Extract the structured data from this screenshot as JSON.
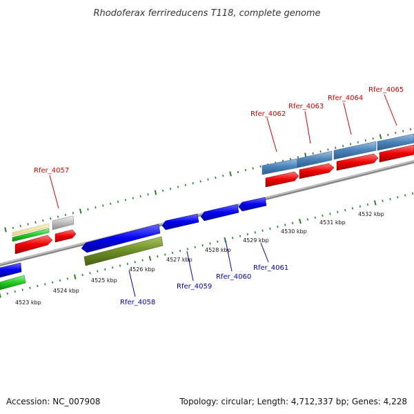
{
  "title": "Rhodoferax ferrireducens T118, complete genome",
  "footer": {
    "accession": "Accession: NC_007908",
    "summary": "Topology: circular; Length: 4,712,337 bp; Genes: 4,228"
  },
  "colors": {
    "forward_label": "#cc0000",
    "reverse_label": "#0000aa",
    "backbone": "#888888",
    "tick": "#2a7a2a"
  },
  "tick_labels": [
    "4523 kbp",
    "4524 kbp",
    "4525 kbp",
    "4526 kbp",
    "4527 kbp",
    "4528 kbp",
    "4529 kbp",
    "4530 kbp",
    "4531 kbp",
    "4532 kbp"
  ],
  "genes_forward": [
    {
      "label": "Rfer_4057"
    },
    {
      "label": "Rfer_4062"
    },
    {
      "label": "Rfer_4063"
    },
    {
      "label": "Rfer_4064"
    },
    {
      "label": "Rfer_4065"
    }
  ],
  "genes_reverse": [
    {
      "label": "Rfer_4058"
    },
    {
      "label": "Rfer_4059"
    },
    {
      "label": "Rfer_4060"
    },
    {
      "label": "Rfer_4061"
    }
  ]
}
